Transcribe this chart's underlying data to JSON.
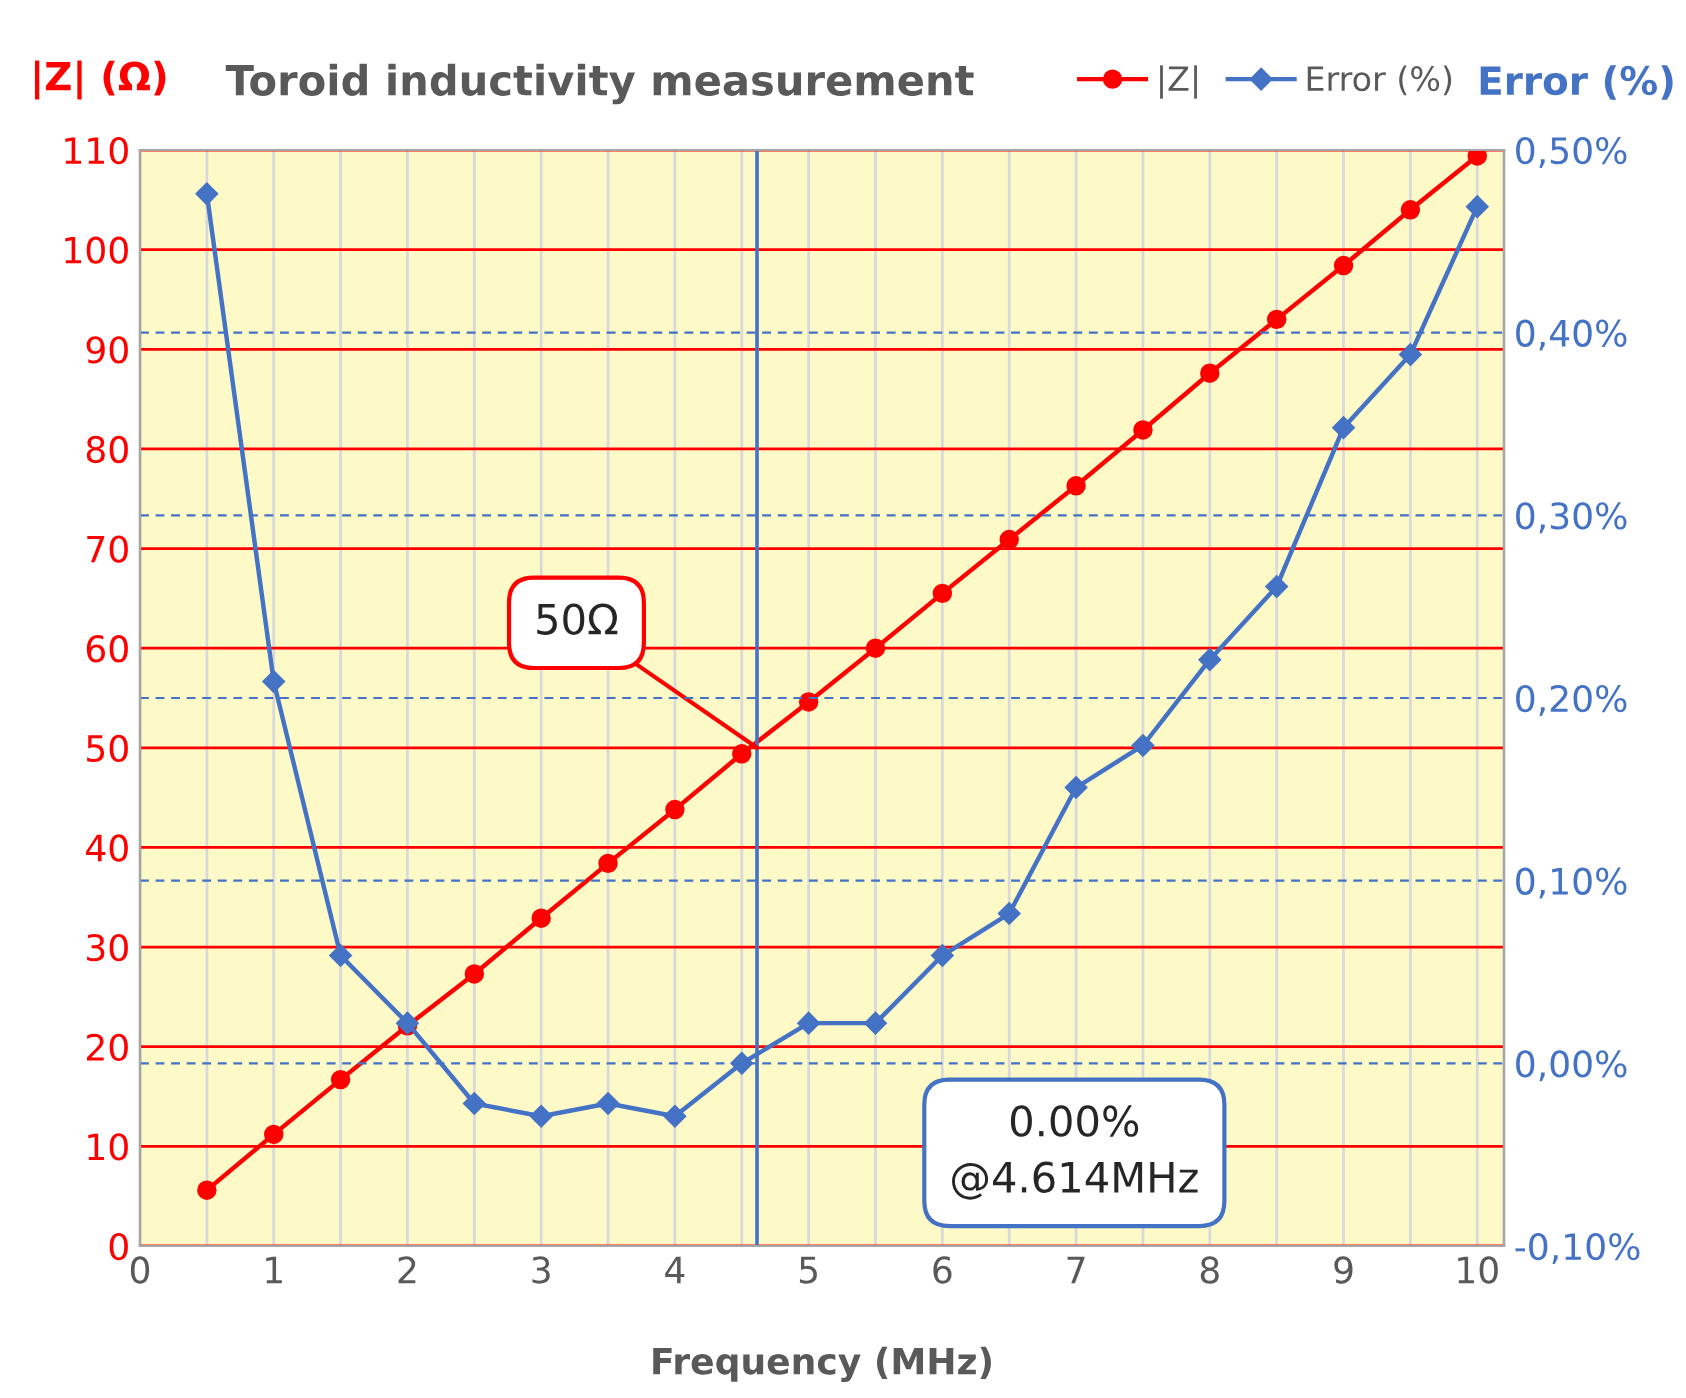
{
  "chart_data": {
    "type": "line",
    "title": "Toroid inductivity measurement",
    "xlabel": "Frequency (MHz)",
    "ylabel": "|Z| (Ω)",
    "y2label": "Error (%)",
    "x": [
      0.5,
      1,
      1.5,
      2,
      2.5,
      3,
      3.5,
      4,
      4.5,
      5,
      5.5,
      6,
      6.5,
      7,
      7.5,
      8,
      8.5,
      9,
      9.5,
      10
    ],
    "series": [
      {
        "name": "|Z|",
        "color": "#ff0000",
        "values": [
          5.6,
          11.2,
          16.7,
          22.1,
          27.3,
          32.9,
          38.4,
          43.8,
          49.4,
          54.6,
          60.0,
          65.5,
          70.9,
          76.3,
          81.9,
          87.6,
          93.0,
          98.4,
          104.0,
          109.4
        ],
        "marker": "circle"
      },
      {
        "name": "Error (%)",
        "color": "#4472c4",
        "axis": "y2",
        "values": [
          0.476,
          0.209,
          0.059,
          0.022,
          -0.022,
          -0.029,
          -0.022,
          -0.029,
          0.0,
          0.022,
          0.022,
          0.059,
          0.082,
          0.151,
          0.174,
          0.221,
          0.261,
          0.348,
          0.388,
          0.469
        ],
        "marker": "diamond"
      }
    ],
    "xlim": [
      0,
      10.2
    ],
    "xticks": [
      0,
      {
        "value": 0.5,
        "label": null
      },
      1,
      {
        "value": 1.5,
        "label": null
      },
      2,
      {
        "value": 2.5,
        "label": null
      },
      3,
      {
        "value": 3.5,
        "label": null
      },
      4,
      {
        "value": 4.5,
        "label": null
      },
      5,
      {
        "value": 5.5,
        "label": null
      },
      6,
      {
        "value": 6.5,
        "label": null
      },
      7,
      {
        "value": 7.5,
        "label": null
      },
      8,
      {
        "value": 8.5,
        "label": null
      },
      9,
      {
        "value": 9.5,
        "label": null
      },
      10
    ],
    "ylim": [
      0,
      110
    ],
    "yticks": [
      0,
      10,
      20,
      30,
      40,
      50,
      60,
      70,
      80,
      90,
      100,
      110
    ],
    "y2lim": [
      -0.1,
      0.5
    ],
    "y2ticks": [
      {
        "value": -0.1,
        "label": "-0,10%"
      },
      {
        "value": 0.0,
        "label": "0,00%"
      },
      {
        "value": 0.1,
        "label": "0,10%"
      },
      {
        "value": 0.2,
        "label": "0,20%"
      },
      {
        "value": 0.3,
        "label": "0,30%"
      },
      {
        "value": 0.4,
        "label": "0,40%"
      },
      {
        "value": 0.5,
        "label": "0,50%"
      }
    ],
    "ref_lines": [
      {
        "axis": "x",
        "value": 4.614,
        "color": "#4472c4"
      }
    ],
    "annotations": [
      {
        "text": "50Ω",
        "x": 4.614,
        "y": 50
      },
      "0.00%\n@4.614MHz"
    ],
    "grid": true,
    "legend": "top right",
    "line_style": "solid"
  }
}
